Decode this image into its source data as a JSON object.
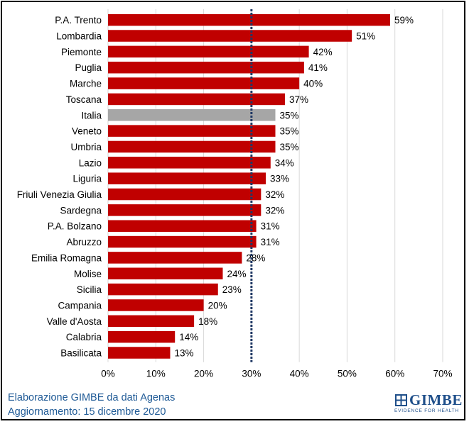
{
  "chart_data": {
    "type": "bar",
    "orientation": "horizontal",
    "categories": [
      "P.A. Trento",
      "Lombardia",
      "Piemonte",
      "Puglia",
      "Marche",
      "Toscana",
      "Italia",
      "Veneto",
      "Umbria",
      "Lazio",
      "Liguria",
      "Friuli Venezia Giulia",
      "Sardegna",
      "P.A. Bolzano",
      "Abruzzo",
      "Emilia Romagna",
      "Molise",
      "Sicilia",
      "Campania",
      "Valle d'Aosta",
      "Calabria",
      "Basilicata"
    ],
    "values": [
      59,
      51,
      42,
      41,
      40,
      37,
      35,
      35,
      35,
      34,
      33,
      32,
      32,
      31,
      31,
      28,
      24,
      23,
      20,
      18,
      14,
      13
    ],
    "value_labels": [
      "59%",
      "51%",
      "42%",
      "41%",
      "40%",
      "37%",
      "35%",
      "35%",
      "35%",
      "34%",
      "33%",
      "32%",
      "32%",
      "31%",
      "31%",
      "28%",
      "24%",
      "23%",
      "20%",
      "18%",
      "14%",
      "13%"
    ],
    "highlight_category": "Italia",
    "xlim": [
      0,
      70
    ],
    "xticks": [
      0,
      10,
      20,
      30,
      40,
      50,
      60,
      70
    ],
    "xtick_labels": [
      "0%",
      "10%",
      "20%",
      "30%",
      "40%",
      "50%",
      "60%",
      "70%"
    ],
    "reference_line": 30,
    "grid": "vertical",
    "colors": {
      "bar": "#c00000",
      "highlight": "#a6a6a6",
      "reference": "#1f3864",
      "grid": "#d9d9d9"
    }
  },
  "footer": {
    "source": "Elaborazione GIMBE da dati Agenas",
    "update": "Aggiornamento: 15 dicembre 2020"
  },
  "logo": {
    "name": "GIMBE",
    "tagline": "EVIDENCE FOR HEALTH",
    "color": "#1f4f8a"
  }
}
